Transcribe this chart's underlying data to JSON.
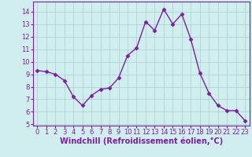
{
  "x": [
    0,
    1,
    2,
    3,
    4,
    5,
    6,
    7,
    8,
    9,
    10,
    11,
    12,
    13,
    14,
    15,
    16,
    17,
    18,
    19,
    20,
    21,
    22,
    23
  ],
  "y": [
    9.3,
    9.2,
    9.0,
    8.5,
    7.2,
    6.5,
    7.3,
    7.8,
    7.9,
    8.7,
    10.5,
    11.1,
    13.2,
    12.5,
    14.2,
    13.0,
    13.8,
    11.8,
    9.1,
    7.5,
    6.5,
    6.1,
    6.1,
    5.3
  ],
  "line_color": "#7b1fa2",
  "marker": "D",
  "marker_size": 2.5,
  "bg_color": "#d0eeee",
  "grid_color": "#aacccc",
  "spine_color": "#7b1fa2",
  "ylim_min": 4.9,
  "ylim_max": 14.8,
  "yticks": [
    5,
    6,
    7,
    8,
    9,
    10,
    11,
    12,
    13,
    14
  ],
  "xticks": [
    0,
    1,
    2,
    3,
    4,
    5,
    6,
    7,
    8,
    9,
    10,
    11,
    12,
    13,
    14,
    15,
    16,
    17,
    18,
    19,
    20,
    21,
    22,
    23
  ],
  "xlabel": "Windchill (Refroidissement éolien,°C)",
  "xlabel_fontsize": 7,
  "tick_fontsize": 6,
  "line_width": 1.0
}
